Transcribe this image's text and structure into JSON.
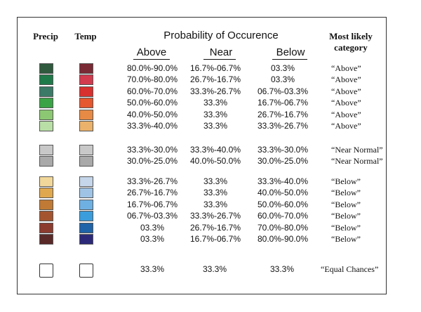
{
  "headers": {
    "precip": "Precip",
    "temp": "Temp",
    "title": "Probability of Occurence",
    "above": "Above",
    "near": "Near",
    "below": "Below",
    "most_likely_line1": "Most likely",
    "most_likely_line2": "category"
  },
  "groups": [
    {
      "rows": [
        {
          "precip": "#2f5a3e",
          "temp": "#7a2a35",
          "above": "80.0%-90.0%",
          "near": "16.7%-06.7%",
          "below": "03.3%",
          "category": "“Above”"
        },
        {
          "precip": "#1f7a4a",
          "temp": "#d23a4e",
          "above": "70.0%-80.0%",
          "near": "26.7%-16.7%",
          "below": "03.3%",
          "category": "“Above”"
        },
        {
          "precip": "#3b7a66",
          "temp": "#d8302e",
          "above": "60.0%-70.0%",
          "near": "33.3%-26.7%",
          "below": "06.7%-03.3%",
          "category": "“Above”"
        },
        {
          "precip": "#3aa346",
          "temp": "#e4572f",
          "above": "50.0%-60.0%",
          "near": "33.3%",
          "below": "16.7%-06.7%",
          "category": "“Above”"
        },
        {
          "precip": "#8cc873",
          "temp": "#e78a45",
          "above": "40.0%-50.0%",
          "near": "33.3%",
          "below": "26.7%-16.7%",
          "category": "“Above”"
        },
        {
          "precip": "#b9dfa6",
          "temp": "#eab26a",
          "above": "33.3%-40.0%",
          "near": "33.3%",
          "below": "33.3%-26.7%",
          "category": "“Above”"
        }
      ]
    },
    {
      "rows": [
        {
          "precip": "#c8c8c8",
          "temp": "#c8c8c8",
          "above": "33.3%-30.0%",
          "near": "33.3%-40.0%",
          "below": "33.3%-30.0%",
          "category": "“Near Normal”"
        },
        {
          "precip": "#a9a9a9",
          "temp": "#a9a9a9",
          "above": "30.0%-25.0%",
          "near": "40.0%-50.0%",
          "below": "30.0%-25.0%",
          "category": "“Near Normal”"
        }
      ]
    },
    {
      "rows": [
        {
          "precip": "#f2d79a",
          "temp": "#c5d6ea",
          "above": "33.3%-26.7%",
          "near": "33.3%",
          "below": "33.3%-40.0%",
          "category": "“Below”"
        },
        {
          "precip": "#e0a84e",
          "temp": "#9fc3e5",
          "above": "26.7%-16.7%",
          "near": "33.3%",
          "below": "40.0%-50.0%",
          "category": "“Below”"
        },
        {
          "precip": "#c07a35",
          "temp": "#6fb0e2",
          "above": "16.7%-06.7%",
          "near": "33.3%",
          "below": "50.0%-60.0%",
          "category": "“Below”"
        },
        {
          "precip": "#a4552f",
          "temp": "#3b9ddc",
          "above": "06.7%-03.3%",
          "near": "33.3%-26.7%",
          "below": "60.0%-70.0%",
          "category": "“Below”"
        },
        {
          "precip": "#8c3b2f",
          "temp": "#1f63a8",
          "above": "03.3%",
          "near": "26.7%-16.7%",
          "below": "70.0%-80.0%",
          "category": "“Below”"
        },
        {
          "precip": "#5a2a28",
          "temp": "#2c2a78",
          "above": "03.3%",
          "near": "16.7%-06.7%",
          "below": "80.0%-90.0%",
          "category": "“Below”"
        }
      ]
    }
  ],
  "equal": {
    "above": "33.3%",
    "near": "33.3%",
    "below": "33.3%",
    "category": "“Equal Chances”"
  }
}
